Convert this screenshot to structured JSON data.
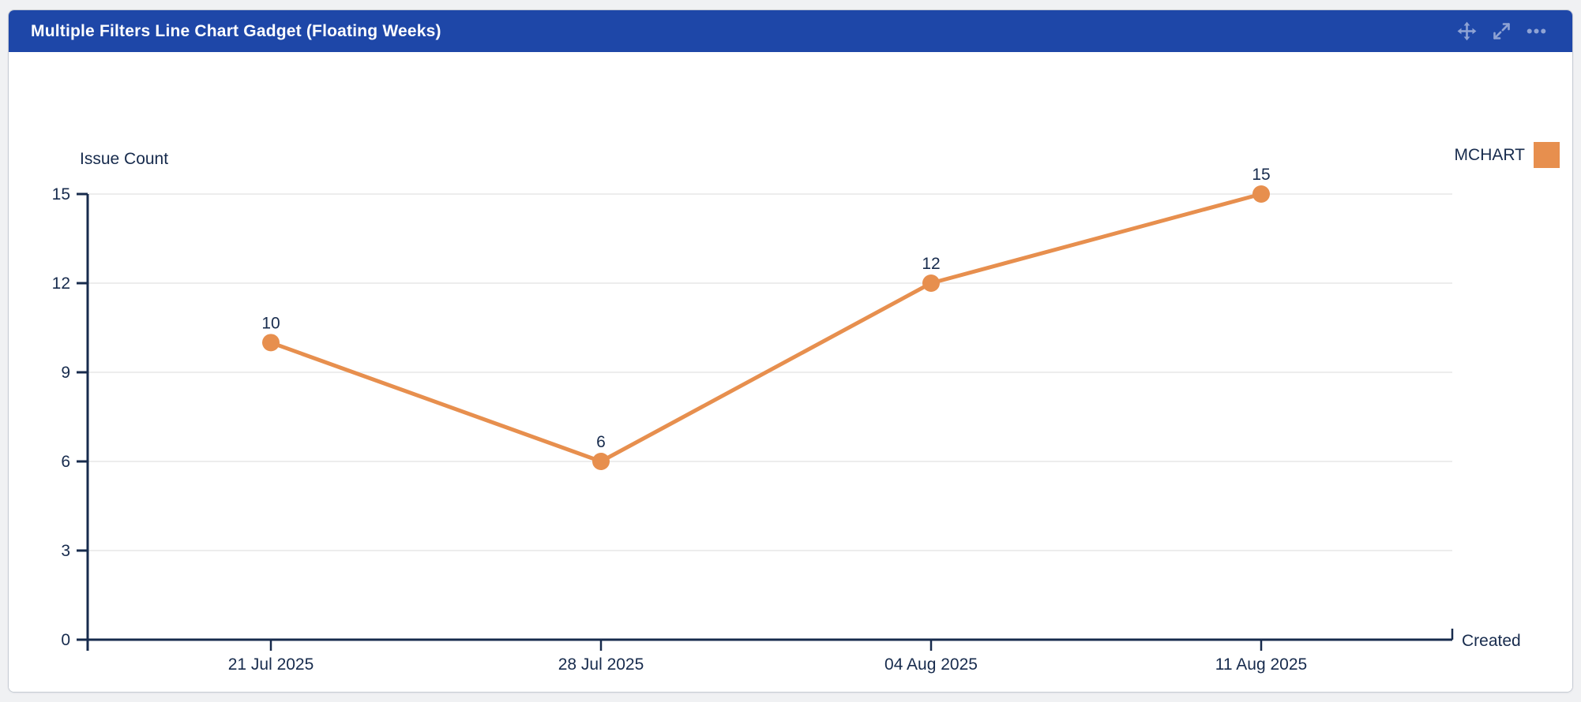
{
  "gadget": {
    "title": "Multiple Filters Line Chart Gadget (Floating Weeks)",
    "header_icons": [
      "move-icon",
      "expand-icon",
      "more-options-icon"
    ]
  },
  "colors": {
    "page_bg": "#F0F1F3",
    "card_bg": "#FFFFFF",
    "card_border": "#C6CBD3",
    "header_bg": "#1E47A8",
    "header_text": "#FFFFFF",
    "header_icon": "#8FA3D4",
    "axis": "#172B4D",
    "text": "#172B4D",
    "grid": "#EDEDED",
    "series_orange": "#E78F4E"
  },
  "chart_data": {
    "type": "line",
    "title": "Multiple Filters Line Chart Gadget (Floating Weeks)",
    "xlabel": "Created",
    "ylabel": "Issue Count",
    "categories": [
      "21 Jul 2025",
      "28 Jul 2025",
      "04 Aug 2025",
      "11 Aug 2025"
    ],
    "series": [
      {
        "name": "MCHART",
        "color": "#E78F4E",
        "values": [
          10,
          6,
          12,
          15
        ]
      }
    ],
    "yticks": [
      0,
      3,
      6,
      9,
      12,
      15
    ],
    "ylim": [
      0,
      15
    ],
    "grid": "horizontal",
    "show_point_labels": true,
    "legend_position": "top-right"
  }
}
